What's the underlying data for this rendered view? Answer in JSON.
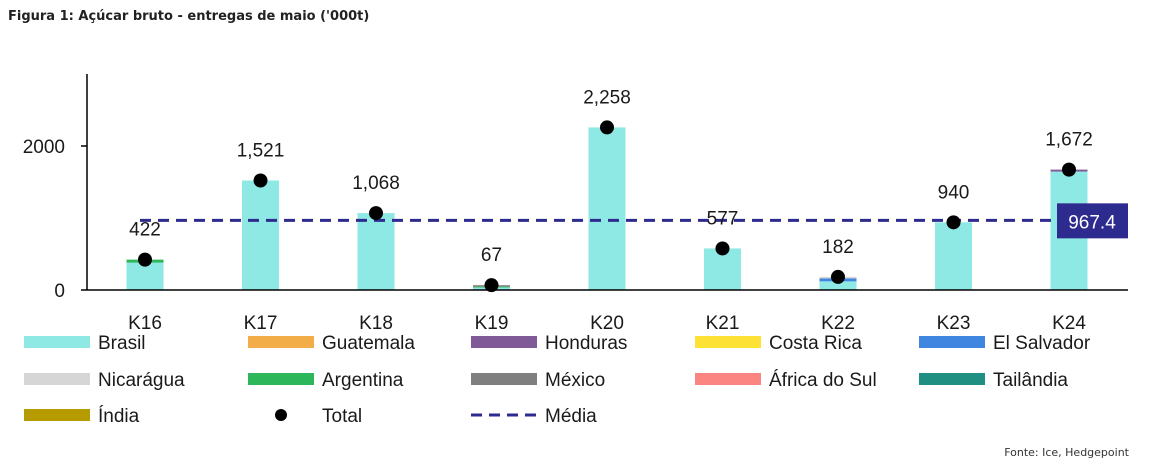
{
  "title": "Figura 1: Açúcar bruto - entregas de maio ('000t)",
  "source": "Fonte: Ice, Hedgepoint",
  "chart_data": {
    "type": "bar",
    "stacked": true,
    "categories": [
      "K16",
      "K17",
      "K18",
      "K19",
      "K20",
      "K21",
      "K22",
      "K23",
      "K24"
    ],
    "series": [
      {
        "name": "Brasil",
        "color": "#8ee8e3",
        "values": [
          380,
          1521,
          1068,
          35,
          2258,
          577,
          120,
          940,
          1645
        ]
      },
      {
        "name": "Guatemala",
        "color": "#f2ac48",
        "values": [
          0,
          0,
          0,
          0,
          0,
          0,
          0,
          0,
          0
        ]
      },
      {
        "name": "Honduras",
        "color": "#7f5a97",
        "values": [
          0,
          0,
          0,
          0,
          0,
          0,
          0,
          0,
          27
        ]
      },
      {
        "name": "Costa Rica",
        "color": "#fde135",
        "values": [
          0,
          0,
          0,
          0,
          0,
          0,
          0,
          0,
          0
        ]
      },
      {
        "name": "El Salvador",
        "color": "#3e86e0",
        "values": [
          0,
          0,
          0,
          0,
          0,
          0,
          40,
          0,
          0
        ]
      },
      {
        "name": "Nicarágua",
        "color": "#d6d6d6",
        "values": [
          0,
          0,
          0,
          0,
          0,
          0,
          22,
          0,
          0
        ]
      },
      {
        "name": "Argentina",
        "color": "#2eb65a",
        "values": [
          42,
          0,
          0,
          12,
          0,
          0,
          0,
          0,
          0
        ]
      },
      {
        "name": "México",
        "color": "#7f7f7f",
        "values": [
          0,
          0,
          0,
          20,
          0,
          0,
          0,
          0,
          0
        ]
      },
      {
        "name": "África do Sul",
        "color": "#fb8580",
        "values": [
          0,
          0,
          0,
          0,
          0,
          0,
          0,
          0,
          0
        ]
      },
      {
        "name": "Tailândia",
        "color": "#1f8f82",
        "values": [
          0,
          0,
          0,
          0,
          0,
          0,
          0,
          0,
          0
        ]
      },
      {
        "name": "Índia",
        "color": "#b59a00",
        "values": [
          0,
          0,
          0,
          0,
          0,
          0,
          0,
          0,
          0
        ]
      }
    ],
    "totals": {
      "name": "Total",
      "values": [
        422,
        1521,
        1068,
        67,
        2258,
        577,
        182,
        940,
        1672
      ],
      "labels": [
        "422",
        "1,521",
        "1,068",
        "67",
        "2,258",
        "577",
        "182",
        "940",
        "1,672"
      ]
    },
    "average": {
      "name": "Média",
      "value": 967.4,
      "label": "967.4",
      "color": "#2e2b8f"
    },
    "yticks": [
      0,
      2000
    ],
    "ylim": [
      0,
      3000
    ],
    "legend_position": "bottom",
    "grid": false
  }
}
